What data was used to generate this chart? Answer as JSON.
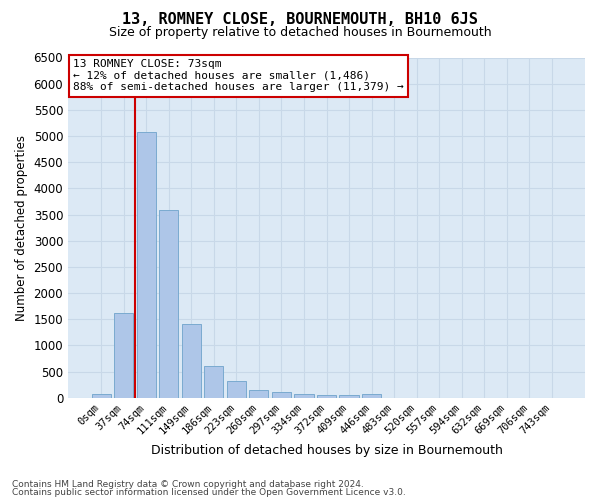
{
  "title": "13, ROMNEY CLOSE, BOURNEMOUTH, BH10 6JS",
  "subtitle": "Size of property relative to detached houses in Bournemouth",
  "xlabel": "Distribution of detached houses by size in Bournemouth",
  "ylabel": "Number of detached properties",
  "bar_labels": [
    "0sqm",
    "37sqm",
    "74sqm",
    "111sqm",
    "149sqm",
    "186sqm",
    "223sqm",
    "260sqm",
    "297sqm",
    "334sqm",
    "372sqm",
    "409sqm",
    "446sqm",
    "483sqm",
    "520sqm",
    "557sqm",
    "594sqm",
    "632sqm",
    "669sqm",
    "706sqm",
    "743sqm"
  ],
  "bar_values": [
    75,
    1620,
    5080,
    3580,
    1400,
    600,
    310,
    155,
    105,
    70,
    55,
    55,
    70,
    0,
    0,
    0,
    0,
    0,
    0,
    0,
    0
  ],
  "bar_color": "#aec6e8",
  "bar_edge_color": "#7aaad0",
  "vline_index": 2,
  "vline_color": "#cc0000",
  "ylim_max": 6500,
  "ytick_step": 500,
  "annotation_title": "13 ROMNEY CLOSE: 73sqm",
  "annotation_line1": "← 12% of detached houses are smaller (1,486)",
  "annotation_line2": "88% of semi-detached houses are larger (11,379) →",
  "annotation_box_facecolor": "#ffffff",
  "annotation_box_edgecolor": "#cc0000",
  "grid_color": "#c8d8e8",
  "axes_bg_color": "#dce9f5",
  "footer1": "Contains HM Land Registry data © Crown copyright and database right 2024.",
  "footer2": "Contains public sector information licensed under the Open Government Licence v3.0."
}
